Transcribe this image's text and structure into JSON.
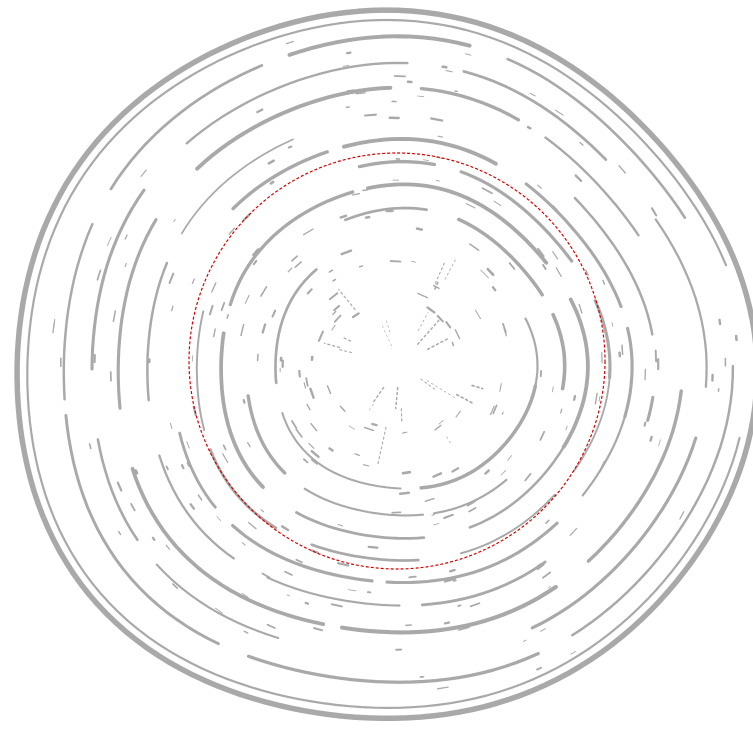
{
  "colors": {
    "background": "#ffffff",
    "ring_stroke": "#a9a9a9",
    "guide_circle": "#d40000"
  }
}
